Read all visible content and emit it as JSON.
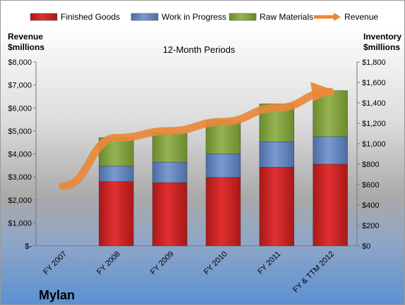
{
  "company": "Mylan",
  "chart_data": {
    "type": "bar",
    "stacked": true,
    "title": "12-Month Periods",
    "categories": [
      "FY 2007",
      "FY 2008",
      "FY 2009",
      "FY 2010",
      "FY 2011",
      "FY & TTM 2012"
    ],
    "y_left": {
      "label_line1": "Revenue",
      "label_line2": "$millions",
      "range": [
        0,
        8000
      ],
      "ticks": [
        0,
        1000,
        2000,
        3000,
        4000,
        5000,
        6000,
        7000,
        8000
      ],
      "tick_labels": [
        "$-",
        "$1,000",
        "$2,000",
        "$3,000",
        "$4,000",
        "$5,000",
        "$6,000",
        "$7,000",
        "$8,000"
      ]
    },
    "y_right": {
      "label_line1": "Inventory",
      "label_line2": "$millions",
      "range": [
        0,
        1800
      ],
      "ticks": [
        0,
        200,
        400,
        600,
        800,
        1000,
        1200,
        1400,
        1600,
        1800
      ],
      "tick_labels": [
        "$0",
        "$200",
        "$400",
        "$600",
        "$800",
        "$1,000",
        "$1,200",
        "$1,400",
        "$1,600",
        "$1,800"
      ]
    },
    "legend_position": "top",
    "series": [
      {
        "name": "Finished Goods",
        "axis": "right",
        "color": "#cc2222",
        "values": [
          null,
          630,
          620,
          670,
          770,
          800
        ]
      },
      {
        "name": "Work in Progress",
        "axis": "right",
        "color": "#5b80b8",
        "values": [
          null,
          150,
          200,
          230,
          250,
          270
        ]
      },
      {
        "name": "Raw Materials",
        "axis": "right",
        "color": "#7f9e3a",
        "values": [
          null,
          280,
          290,
          330,
          370,
          450
        ]
      },
      {
        "name": "Revenue",
        "axis": "left",
        "type": "line",
        "color": "#e8893a",
        "values": [
          2600,
          4700,
          5000,
          5400,
          6000,
          6700
        ]
      }
    ]
  }
}
